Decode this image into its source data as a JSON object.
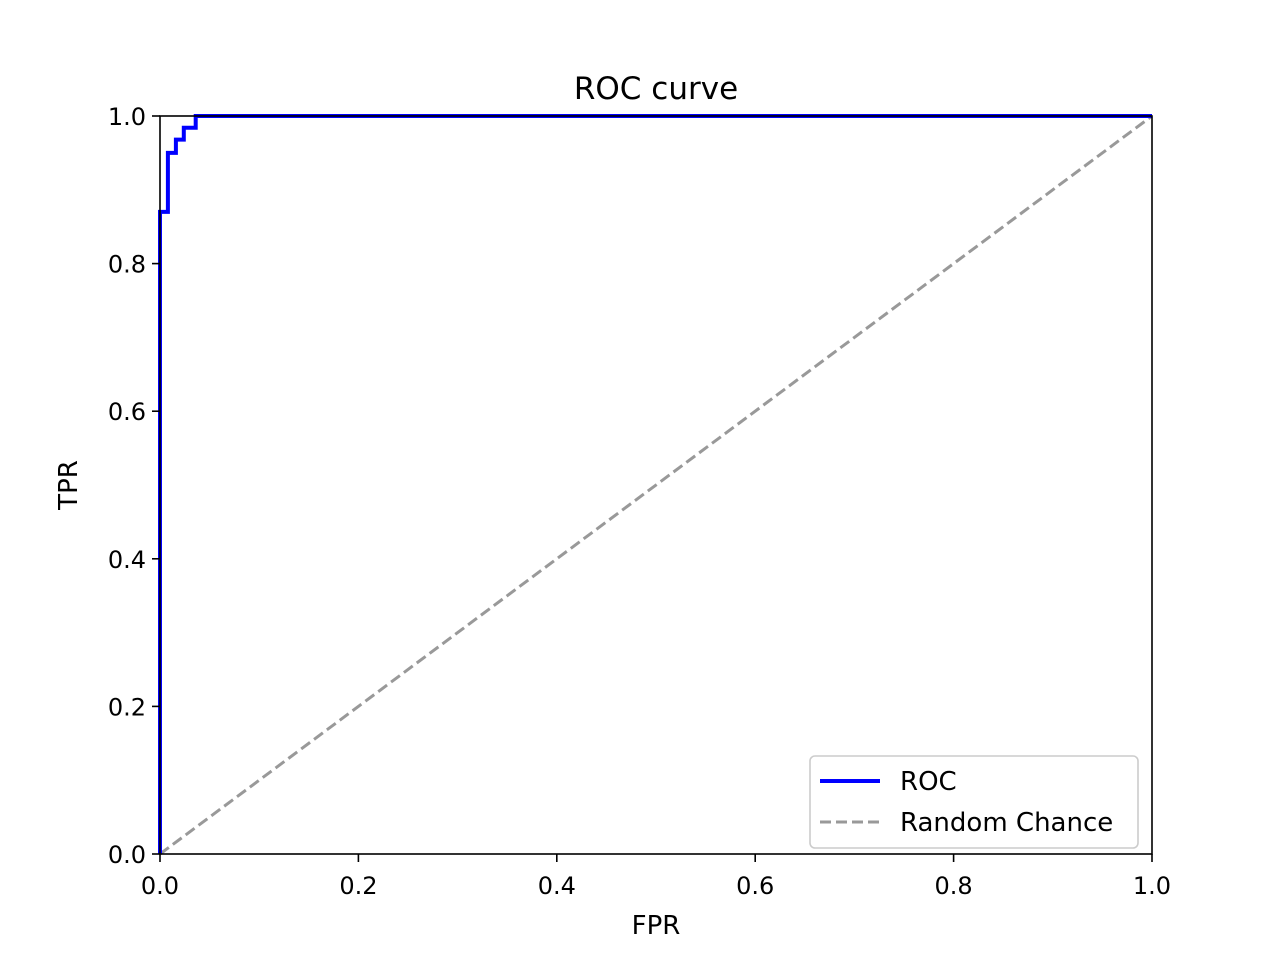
{
  "chart_data": {
    "type": "line",
    "title": "ROC curve",
    "xlabel": "FPR",
    "ylabel": "TPR",
    "xlim": [
      0.0,
      1.0
    ],
    "ylim": [
      0.0,
      1.0
    ],
    "xticks": [
      "0.0",
      "0.2",
      "0.4",
      "0.6",
      "0.8",
      "1.0"
    ],
    "yticks": [
      "0.0",
      "0.2",
      "0.4",
      "0.6",
      "0.8",
      "1.0"
    ],
    "grid": false,
    "legend_position": "lower-right",
    "series": [
      {
        "name": "ROC",
        "color": "#0000ff",
        "style": "solid",
        "x": [
          0.0,
          0.0,
          0.0,
          0.008,
          0.008,
          0.016,
          0.016,
          0.024,
          0.024,
          0.032,
          0.032,
          0.036,
          0.036,
          1.0
        ],
        "y": [
          0.0,
          0.87,
          0.87,
          0.87,
          0.95,
          0.95,
          0.968,
          0.968,
          0.984,
          0.984,
          0.984,
          0.984,
          1.0,
          1.0
        ]
      },
      {
        "name": "Random Chance",
        "color": "#999999",
        "style": "dashed",
        "x": [
          0.0,
          1.0
        ],
        "y": [
          0.0,
          1.0
        ]
      }
    ]
  }
}
